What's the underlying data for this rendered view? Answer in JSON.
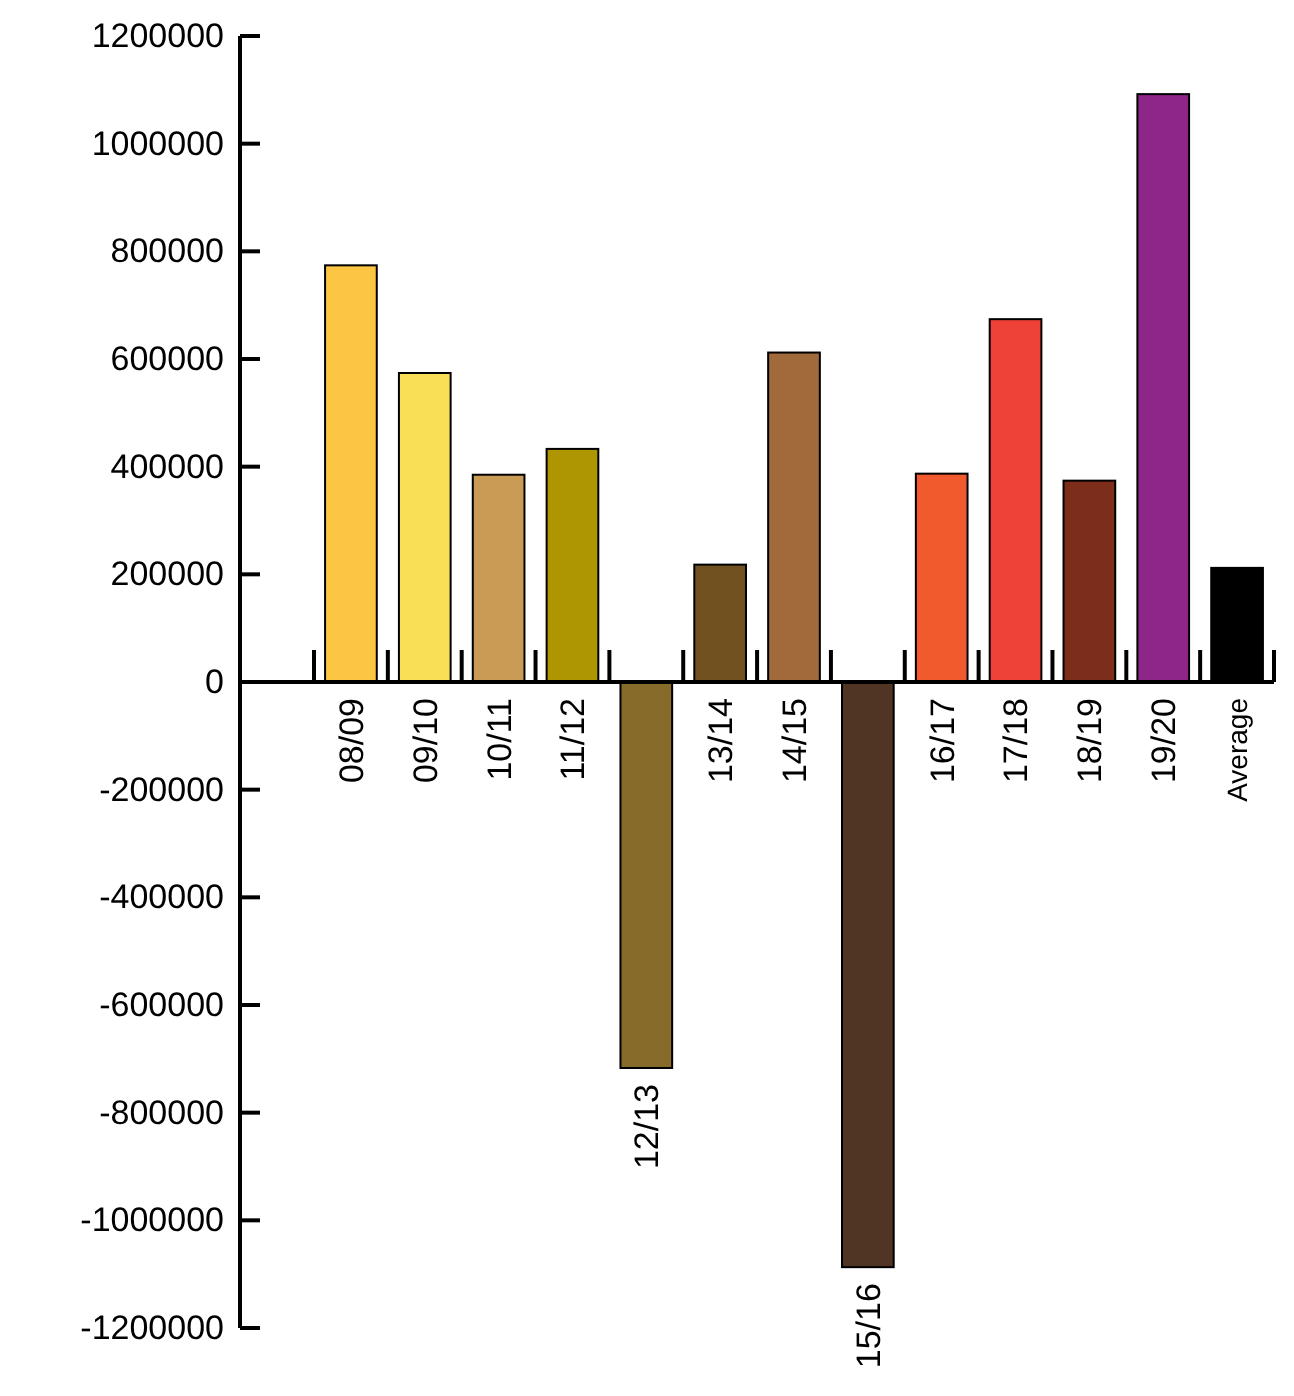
{
  "chart_data": {
    "type": "bar",
    "categories": [
      "08/09",
      "09/10",
      "10/11",
      "11/12",
      "12/13",
      "13/14",
      "14/15",
      "15/16",
      "16/17",
      "17/18",
      "18/19",
      "19/20",
      "Average"
    ],
    "values": [
      774000,
      574000,
      385000,
      433000,
      -717000,
      218000,
      612000,
      -1087000,
      387000,
      674000,
      374000,
      1092000,
      212000
    ],
    "colors": [
      "#fdc544",
      "#f8df55",
      "#c99b55",
      "#ae9502",
      "#876b2a",
      "#725120",
      "#a06a3b",
      "#503524",
      "#f05a2c",
      "#ee4137",
      "#7c2e1a",
      "#8e2689",
      "#000000"
    ],
    "ylim": [
      -1200000,
      1200000
    ],
    "yticks": [
      -1200000,
      -1000000,
      -800000,
      -600000,
      -400000,
      -200000,
      0,
      200000,
      400000,
      600000,
      800000,
      1000000,
      1200000
    ],
    "grid": false
  }
}
